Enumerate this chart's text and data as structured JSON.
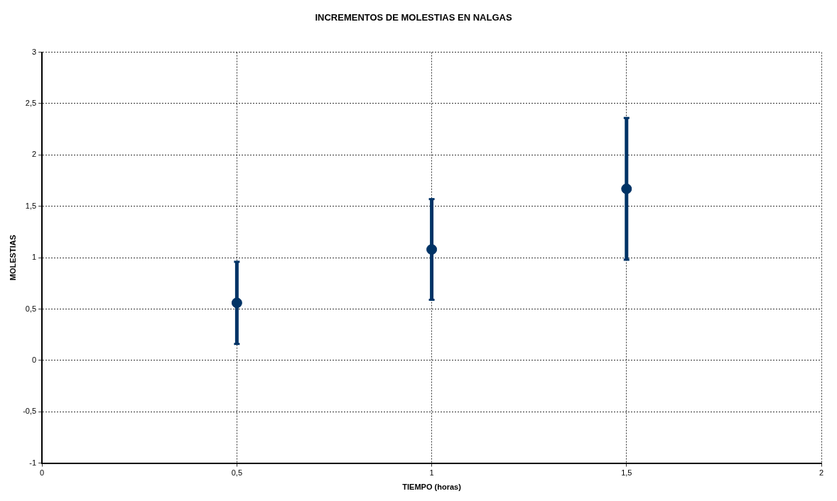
{
  "chart_data": {
    "type": "scatter",
    "title": "INCREMENTOS DE MOLESTIAS EN NALGAS",
    "xlabel": "TIEMPO (horas)",
    "ylabel": "MOLESTIAS",
    "x": [
      0.5,
      1,
      1.5
    ],
    "series": [
      {
        "color": "#003366",
        "values": [
          0.56,
          1.08,
          1.67
        ],
        "errors": [
          0.4,
          0.49,
          0.69
        ]
      }
    ],
    "xlim": [
      0,
      2
    ],
    "xticks": [
      0,
      {
        "value": 0.5,
        "label": "0,5"
      },
      1,
      {
        "value": 1.5,
        "label": "1,5"
      },
      2
    ],
    "ylim": [
      -1,
      3
    ],
    "yticks": [
      {
        "value": -1,
        "label": "-1"
      },
      {
        "value": -0.5,
        "label": "-0,5"
      },
      0,
      {
        "value": 0.5,
        "label": "0,5"
      },
      1,
      {
        "value": 1.5,
        "label": "1,5"
      },
      2,
      {
        "value": 2.5,
        "label": "2,5"
      },
      3
    ],
    "grid": true,
    "marker": "circle",
    "legend": false
  }
}
